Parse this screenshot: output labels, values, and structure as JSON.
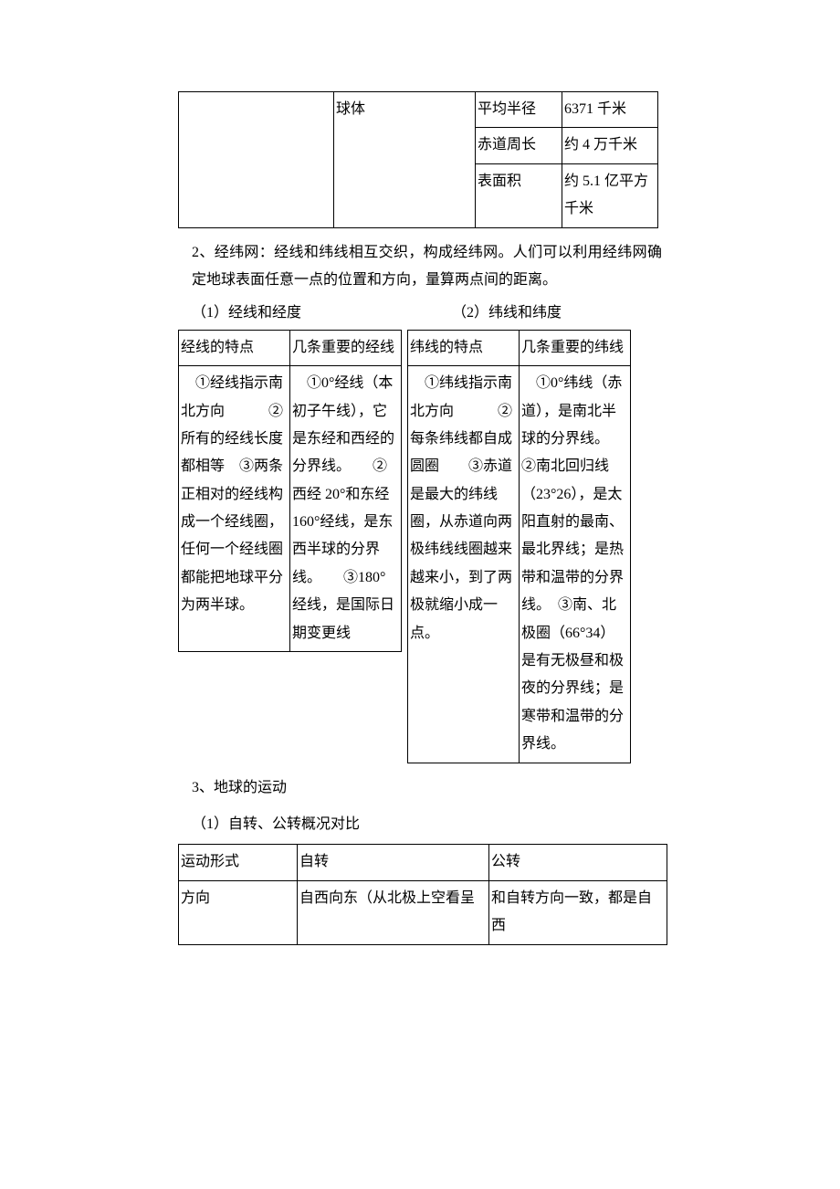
{
  "table1": {
    "c2": "球体",
    "r1c3": "平均半径",
    "r1c4": "6371 千米",
    "r2c3": "赤道周长",
    "r2c4": "约 4 万千米",
    "r3c3": "表面积",
    "r3c4": "约 5.1 亿平方千米"
  },
  "para2": "2、经纬网：经线和纬线相互交织，构成经纬网。人们可以利用经纬网确定地球表面任意一点的位置和方向，量算两点间的距离。",
  "sub1": "（1）经线和经度",
  "sub2": "（2）纬线和纬度",
  "tableL": {
    "h1": "经线的特点",
    "h2": "几条重要的经线",
    "b1": "　①经线指示南北方向　　　②所有的经线长度都相等　③两条正相对的经线构成一个经线圈，任何一个经线圈都能把地球平分为两半球。",
    "b2": "　①0°经线（本初子午线），它是东经和西经的分界线。　　②西经 20°和东经 160°经线，是东西半球的分界线。　　③180°经线，是国际日期变更线"
  },
  "tableR": {
    "h1": "纬线的特点",
    "h2": "几条重要的纬线",
    "b1": "　①纬线指示南北方向　　　②每条纬线都自成圆圈　　③赤道是最大的纬线圈，从赤道向两极纬线线圈越来越来小，到了两极就缩小成一点。",
    "b2": "　①0°纬线（赤道），是南北半球的分界线。　　②南北回归线（23°26），是太阳直射的最南、最北界线；是热带和温带的分界线。　③南、北极圈（66°34）是有无极昼和极夜的分界线；是寒带和温带的分界线。"
  },
  "h3": "3、地球的运动",
  "h31": "（1）自转、公转概况对比",
  "table3": {
    "r1c1": "运动形式",
    "r1c2": "自转",
    "r1c3": "公转",
    "r2c1": "方向",
    "r2c2": "自西向东（从北极上空看呈",
    "r2c3": "和自转方向一致，都是自西"
  }
}
